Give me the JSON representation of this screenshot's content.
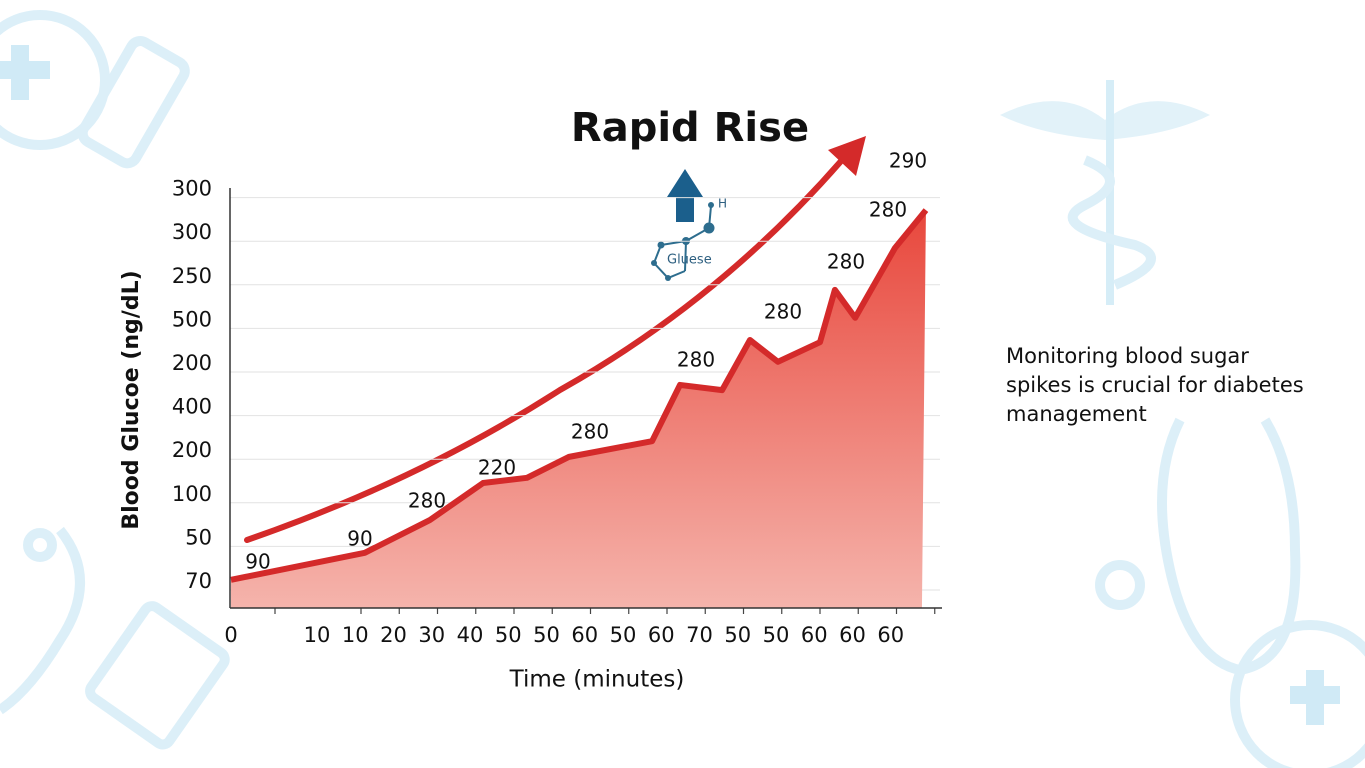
{
  "chart_data": {
    "type": "area",
    "title": "Rapid Rise",
    "y_label": "Blood Glucoe (ng/dL)",
    "x_label": "Time (minutes)",
    "icon_labels": [
      "Gluese",
      "H"
    ],
    "side_note": [
      "Monitoring blood sugar",
      "spikes is crucial for diabetes",
      "management"
    ],
    "yaxis_labels": [
      "70",
      "50",
      "100",
      "200",
      "400",
      "200",
      "500",
      "250",
      "300",
      "300"
    ],
    "xaxis_labels": [
      "0",
      "10",
      "10",
      "20",
      "30",
      "40",
      "50",
      "50",
      "60",
      "50",
      "60",
      "70",
      "50",
      "50",
      "60",
      "60",
      "60"
    ],
    "series": [
      {
        "color": "#d42a2a",
        "x": [
          0,
          2.25,
          3.95,
          5.34,
          6.49,
          7.59,
          9.76,
          10.49,
          11.59,
          12.32,
          13.05,
          14.15,
          14.54,
          15.07,
          16.11,
          16.92
        ],
        "values": [
          0.05,
          0.67,
          1.42,
          2.27,
          2.39,
          2.87,
          3.23,
          4.52,
          4.4,
          5.55,
          5.05,
          5.5,
          6.7,
          6.06,
          7.66,
          8.53
        ]
      }
    ],
    "annotations": [
      "90",
      "90",
      "280",
      "220",
      "280",
      "280",
      "280",
      "280",
      "280",
      "290"
    ],
    "grid": true
  }
}
